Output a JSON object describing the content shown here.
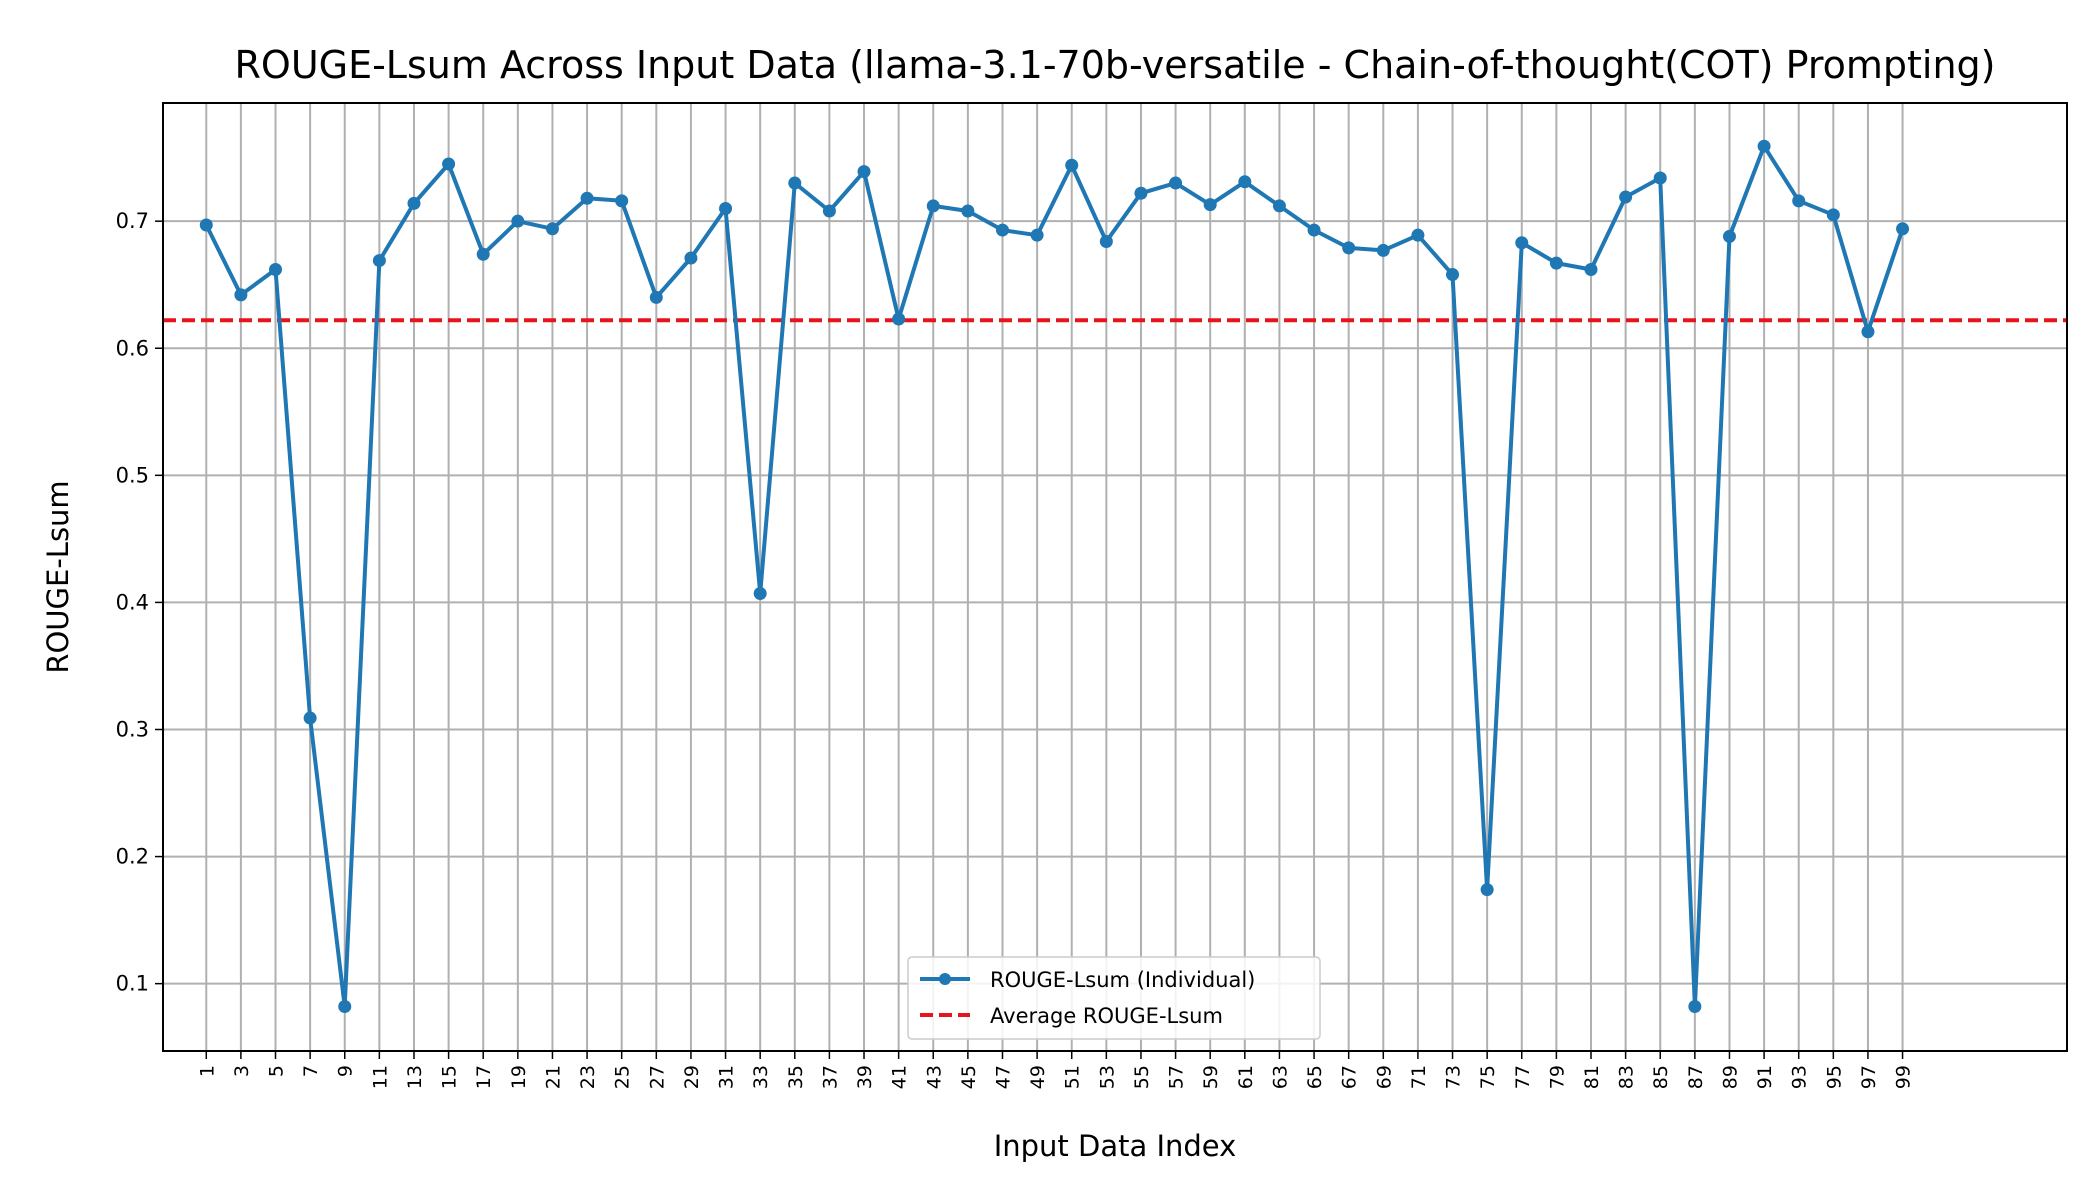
{
  "chart_data": {
    "type": "line",
    "title": "ROUGE-Lsum Across Input Data (llama-3.1-70b-versatile - Chain-of-thought(COT) Prompting)",
    "xlabel": "Input Data Index",
    "ylabel": "ROUGE-Lsum",
    "xlim": [
      -1.5,
      108.5
    ],
    "ylim": [
      0.047,
      0.793
    ],
    "xticks": [
      1,
      3,
      5,
      7,
      9,
      11,
      13,
      15,
      17,
      19,
      21,
      23,
      25,
      27,
      29,
      31,
      33,
      35,
      37,
      39,
      41,
      43,
      45,
      47,
      49,
      51,
      53,
      55,
      57,
      59,
      61,
      63,
      65,
      67,
      69,
      71,
      73,
      75,
      77,
      79,
      81,
      83,
      85,
      87,
      89,
      91,
      93,
      95,
      97,
      99
    ],
    "xtick_labels": [
      "1",
      "3",
      "5",
      "7",
      "9",
      "11",
      "13",
      "15",
      "17",
      "19",
      "21",
      "23",
      "25",
      "27",
      "29",
      "31",
      "33",
      "35",
      "37",
      "39",
      "41",
      "43",
      "45",
      "47",
      "49",
      "51",
      "53",
      "55",
      "57",
      "59",
      "61",
      "63",
      "65",
      "67",
      "69",
      "71",
      "73",
      "75",
      "77",
      "79",
      "81",
      "83",
      "85",
      "87",
      "89",
      "91",
      "93",
      "95",
      "97",
      "99"
    ],
    "yticks": [
      0.1,
      0.2,
      0.3,
      0.4,
      0.5,
      0.6,
      0.7
    ],
    "ytick_labels": [
      "0.1",
      "0.2",
      "0.3",
      "0.4",
      "0.5",
      "0.6",
      "0.7"
    ],
    "grid": true,
    "legend_position": "bottom-center",
    "series": [
      {
        "name": "ROUGE-Lsum (Individual)",
        "style": "solid line with circle markers",
        "color": "#1f77b4",
        "x": [
          1,
          3,
          5,
          7,
          9,
          11,
          13,
          15,
          17,
          19,
          21,
          23,
          25,
          27,
          29,
          31,
          33,
          35,
          37,
          39,
          41,
          43,
          45,
          47,
          49,
          51,
          53,
          55,
          57,
          59,
          61,
          63,
          65,
          67,
          69,
          71,
          73,
          75,
          77,
          79,
          81,
          83,
          85,
          87,
          89,
          91,
          93,
          95,
          97,
          99
        ],
        "values": [
          0.697,
          0.642,
          0.662,
          0.309,
          0.082,
          0.669,
          0.714,
          0.745,
          0.674,
          0.7,
          0.694,
          0.718,
          0.716,
          0.64,
          0.671,
          0.71,
          0.407,
          0.73,
          0.708,
          0.739,
          0.623,
          0.712,
          0.708,
          0.693,
          0.689,
          0.744,
          0.684,
          0.722,
          0.73,
          0.713,
          0.731,
          0.712,
          0.693,
          0.679,
          0.677,
          0.689,
          0.658,
          0.174,
          0.683,
          0.667,
          0.662,
          0.719,
          0.734,
          0.082,
          0.688,
          0.759,
          0.716,
          0.705,
          0.613,
          0.694
        ]
      },
      {
        "name": "Average ROUGE-Lsum",
        "style": "dashed horizontal line",
        "color": "#e8141c",
        "value": 0.622
      }
    ]
  }
}
